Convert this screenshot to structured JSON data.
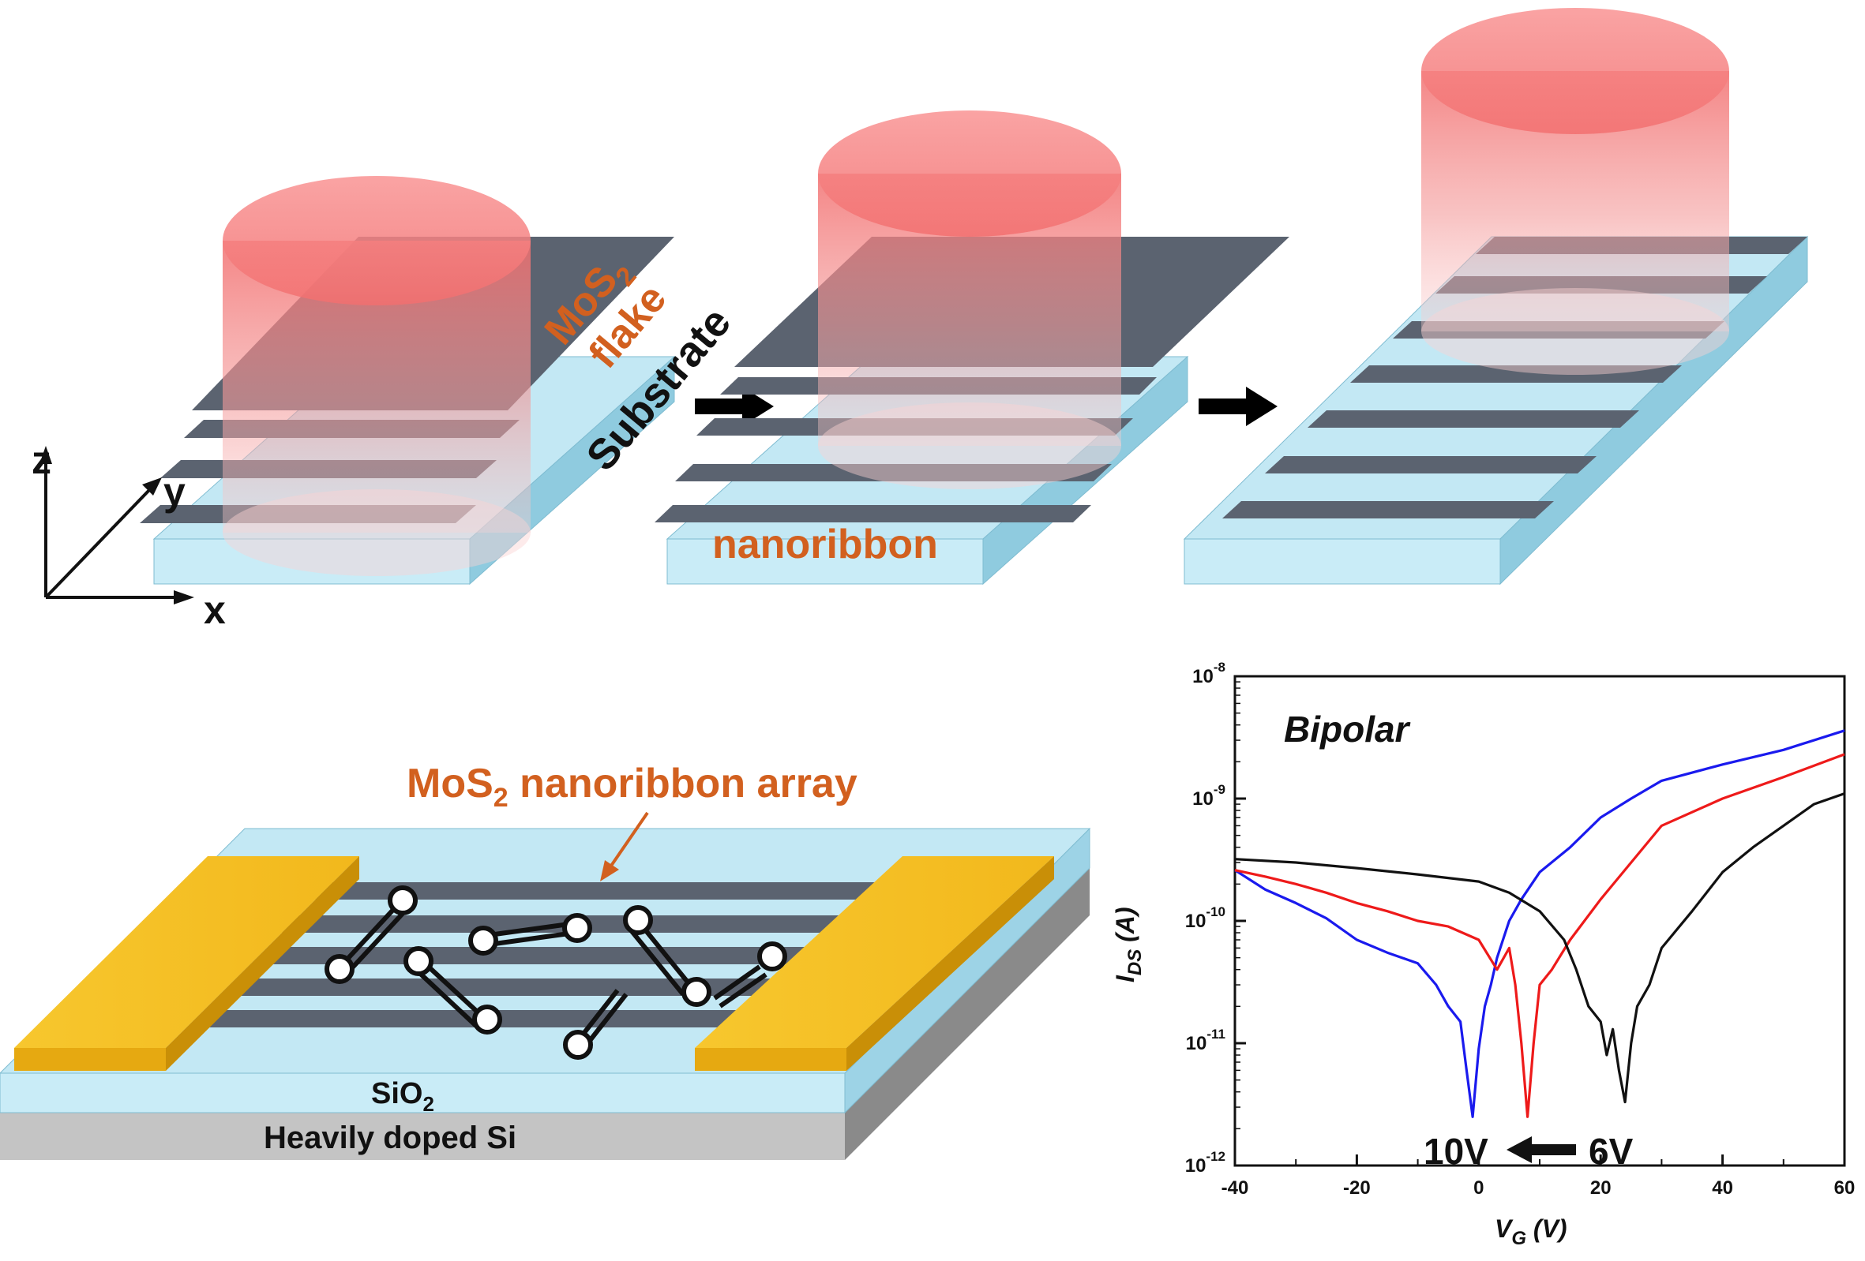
{
  "figure": {
    "panel_top": {
      "label_flake": "MoS",
      "label_flake_sub": "2",
      "label_flake_2": "flake",
      "label_substrate": "Substrate",
      "label_nanoribbon": "nanoribbon",
      "axis_x": "x",
      "axis_y": "y",
      "axis_z": "z"
    },
    "panel_device": {
      "array_label_pre": "MoS",
      "array_label_sub": "2",
      "array_label_post": " nanoribbon array",
      "oxide_label": "SiO",
      "oxide_sub": "2",
      "substrate_label": "Heavily doped Si"
    },
    "colors": {
      "ribbon": "#5b6370",
      "substrate": "#c3e8f4",
      "cylinder": "#f26f6f",
      "electrode": "#f6c22a",
      "annotation": "#d2601f"
    }
  },
  "chart_data": {
    "type": "line",
    "title": "Bipolar",
    "xlabel": "V",
    "xlabel_sub": "G",
    "xlabel_unit": " (V)",
    "ylabel": "I",
    "ylabel_sub": "DS",
    "ylabel_unit": " (A)",
    "xlim": [
      -40,
      60
    ],
    "ylim": [
      1e-12,
      1e-08
    ],
    "yscale": "log",
    "x_ticks": [
      "-40",
      "-20",
      "0",
      "20",
      "40",
      "60"
    ],
    "y_ticks": [
      {
        "base": "10",
        "exp": "-12"
      },
      {
        "base": "10",
        "exp": "-11"
      },
      {
        "base": "10",
        "exp": "-10"
      },
      {
        "base": "10",
        "exp": "-9"
      },
      {
        "base": "10",
        "exp": "-8"
      }
    ],
    "annotation_left": "10V",
    "annotation_right": "6V",
    "series": [
      {
        "color": "#1a1aee",
        "x": [
          -40,
          -35,
          -30,
          -25,
          -20,
          -15,
          -10,
          -7,
          -5,
          -3,
          -2,
          -1,
          0,
          1,
          2,
          3,
          5,
          7,
          10,
          15,
          20,
          25,
          30,
          40,
          50,
          60
        ],
        "y": [
          2.6e-10,
          1.8e-10,
          1.4e-10,
          1.05e-10,
          7e-11,
          5.5e-11,
          4.5e-11,
          3e-11,
          2e-11,
          1.5e-11,
          6e-12,
          2.5e-12,
          9e-12,
          2e-11,
          3e-11,
          5e-11,
          1e-10,
          1.5e-10,
          2.5e-10,
          4e-10,
          7e-10,
          1e-09,
          1.4e-09,
          1.9e-09,
          2.5e-09,
          3.6e-09
        ]
      },
      {
        "color": "#ee1a1a",
        "x": [
          -40,
          -35,
          -30,
          -25,
          -20,
          -15,
          -10,
          -5,
          0,
          3,
          5,
          6,
          7,
          8,
          9,
          10,
          12,
          15,
          20,
          25,
          30,
          40,
          50,
          60
        ],
        "y": [
          2.6e-10,
          2.3e-10,
          2e-10,
          1.7e-10,
          1.4e-10,
          1.2e-10,
          1e-10,
          9e-11,
          7e-11,
          4e-11,
          6e-11,
          3e-11,
          1e-11,
          2.5e-12,
          1e-11,
          3e-11,
          4e-11,
          7e-11,
          1.5e-10,
          3e-10,
          6e-10,
          1e-09,
          1.5e-09,
          2.3e-09
        ]
      },
      {
        "color": "#111111",
        "x": [
          -40,
          -30,
          -20,
          -10,
          0,
          5,
          10,
          14,
          16,
          18,
          20,
          21,
          22,
          23,
          24,
          25,
          26,
          28,
          30,
          35,
          40,
          45,
          50,
          55,
          60
        ],
        "y": [
          3.2e-10,
          3e-10,
          2.7e-10,
          2.4e-10,
          2.1e-10,
          1.7e-10,
          1.2e-10,
          7e-11,
          4e-11,
          2e-11,
          1.5e-11,
          8e-12,
          1.3e-11,
          6e-12,
          3.3e-12,
          1e-11,
          2e-11,
          3e-11,
          6e-11,
          1.2e-10,
          2.5e-10,
          4e-10,
          6e-10,
          9e-10,
          1.1e-09
        ]
      }
    ]
  }
}
